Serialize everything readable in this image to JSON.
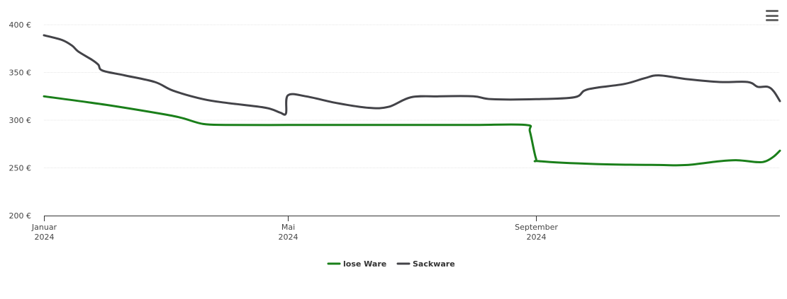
{
  "chart_data": {
    "type": "line",
    "title": "",
    "xlabel": "",
    "ylabel": "",
    "x_range": [
      "2024-01-01",
      "2024-12-31"
    ],
    "ylim": [
      200,
      400
    ],
    "y_ticks": [
      200,
      250,
      300,
      350,
      400
    ],
    "y_tick_labels": [
      "200 €",
      "250 €",
      "300 €",
      "350 €",
      "400 €"
    ],
    "x_ticks": [
      {
        "date": "2024-01-01",
        "line1": "Januar",
        "line2": "2024"
      },
      {
        "date": "2024-05-01",
        "line1": "Mai",
        "line2": "2024"
      },
      {
        "date": "2024-09-01",
        "line1": "September",
        "line2": "2024"
      }
    ],
    "grid": "horizontal",
    "legend_position": "bottom-center",
    "series": [
      {
        "name": "lose Ware",
        "color": "#1a7f1a",
        "points": [
          [
            "2024-01-01",
            325
          ],
          [
            "2024-02-01",
            316
          ],
          [
            "2024-03-01",
            306
          ],
          [
            "2024-03-10",
            302
          ],
          [
            "2024-03-20",
            296
          ],
          [
            "2024-04-01",
            295
          ],
          [
            "2024-05-01",
            295
          ],
          [
            "2024-06-01",
            295
          ],
          [
            "2024-07-01",
            295
          ],
          [
            "2024-08-01",
            295
          ],
          [
            "2024-08-27",
            295
          ],
          [
            "2024-08-29",
            288
          ],
          [
            "2024-09-01",
            260
          ],
          [
            "2024-09-03",
            257
          ],
          [
            "2024-10-01",
            254
          ],
          [
            "2024-11-01",
            253
          ],
          [
            "2024-11-15",
            253
          ],
          [
            "2024-12-01",
            257
          ],
          [
            "2024-12-10",
            258
          ],
          [
            "2024-12-20",
            256
          ],
          [
            "2024-12-24",
            257
          ],
          [
            "2024-12-28",
            262
          ],
          [
            "2024-12-31",
            268
          ]
        ]
      },
      {
        "name": "Sackware",
        "color": "#434348",
        "points": [
          [
            "2024-01-01",
            389
          ],
          [
            "2024-01-10",
            384
          ],
          [
            "2024-01-15",
            378
          ],
          [
            "2024-01-18",
            372
          ],
          [
            "2024-01-25",
            363
          ],
          [
            "2024-01-28",
            358
          ],
          [
            "2024-01-30",
            352
          ],
          [
            "2024-02-10",
            347
          ],
          [
            "2024-02-25",
            340
          ],
          [
            "2024-03-05",
            331
          ],
          [
            "2024-03-20",
            322
          ],
          [
            "2024-04-01",
            318
          ],
          [
            "2024-04-20",
            313
          ],
          [
            "2024-04-27",
            308
          ],
          [
            "2024-04-30",
            307
          ],
          [
            "2024-05-01",
            326
          ],
          [
            "2024-05-10",
            325
          ],
          [
            "2024-05-25",
            318
          ],
          [
            "2024-06-10",
            313
          ],
          [
            "2024-06-20",
            314
          ],
          [
            "2024-07-01",
            324
          ],
          [
            "2024-07-15",
            325
          ],
          [
            "2024-08-01",
            325
          ],
          [
            "2024-08-10",
            322
          ],
          [
            "2024-09-01",
            322
          ],
          [
            "2024-09-20",
            324
          ],
          [
            "2024-09-25",
            331
          ],
          [
            "2024-10-01",
            334
          ],
          [
            "2024-10-15",
            338
          ],
          [
            "2024-10-25",
            344
          ],
          [
            "2024-11-01",
            347
          ],
          [
            "2024-11-15",
            343
          ],
          [
            "2024-12-01",
            340
          ],
          [
            "2024-12-15",
            340
          ],
          [
            "2024-12-20",
            335
          ],
          [
            "2024-12-25",
            335
          ],
          [
            "2024-12-28",
            330
          ],
          [
            "2024-12-31",
            320
          ]
        ]
      }
    ]
  },
  "menu": {
    "icon": "hamburger-menu-icon"
  }
}
